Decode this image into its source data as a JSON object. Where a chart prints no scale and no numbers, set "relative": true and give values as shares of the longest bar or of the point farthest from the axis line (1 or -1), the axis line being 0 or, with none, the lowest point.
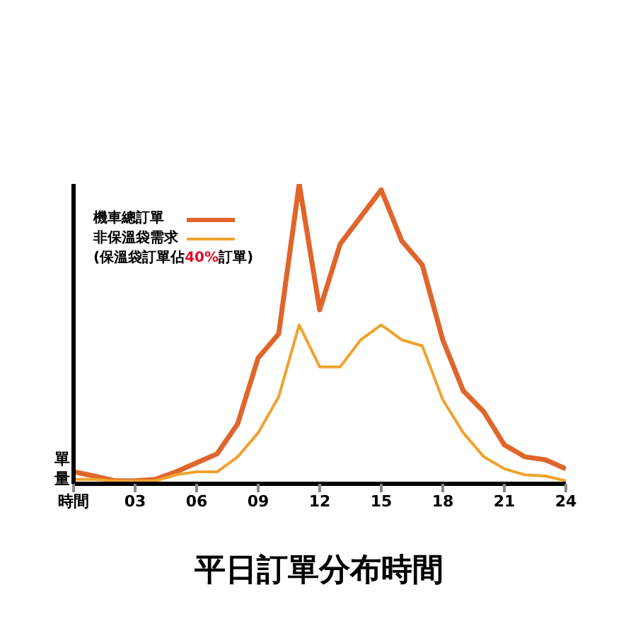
{
  "chart_data": {
    "type": "line",
    "title": "平日訂單分布時間",
    "ylabel": "單量",
    "relative": true,
    "legend": "top left",
    "marker": "none",
    "grid": false,
    "x": [
      0,
      1,
      2,
      3,
      4,
      5,
      6,
      7,
      8,
      9,
      10,
      11,
      12,
      13,
      14,
      15,
      16,
      17,
      18,
      19,
      20,
      21,
      22,
      23,
      24
    ],
    "xlim": [
      0,
      24
    ],
    "xticks": [
      {
        "value": 0,
        "label": "時間"
      },
      {
        "value": 3,
        "label": "03"
      },
      {
        "value": 6,
        "label": "06"
      },
      {
        "value": 9,
        "label": "09"
      },
      12,
      15,
      18,
      21,
      24
    ],
    "series": [
      {
        "name": "機車總訂單",
        "color": "#e0652b",
        "values": [
          0.04,
          0.026,
          0.01,
          0.01,
          0.015,
          0.04,
          0.07,
          0.1,
          0.2,
          0.42,
          0.5,
          1,
          0.58,
          0.8,
          0.89,
          0.98,
          0.81,
          0.73,
          0.48,
          0.31,
          0.24,
          0.13,
          0.09,
          0.08,
          0.05
        ]
      },
      {
        "name": "非保溫袋需求",
        "color": "#f0a22e",
        "values": [
          0.015,
          0.015,
          0.01,
          0.01,
          0.01,
          0.03,
          0.04,
          0.04,
          0.09,
          0.17,
          0.29,
          0.53,
          0.39,
          0.39,
          0.48,
          0.53,
          0.48,
          0.46,
          0.28,
          0.17,
          0.09,
          0.05,
          0.03,
          0.026,
          0.01
        ]
      }
    ],
    "annotations": [
      "(保溫袋訂單佔40%訂單)"
    ]
  }
}
